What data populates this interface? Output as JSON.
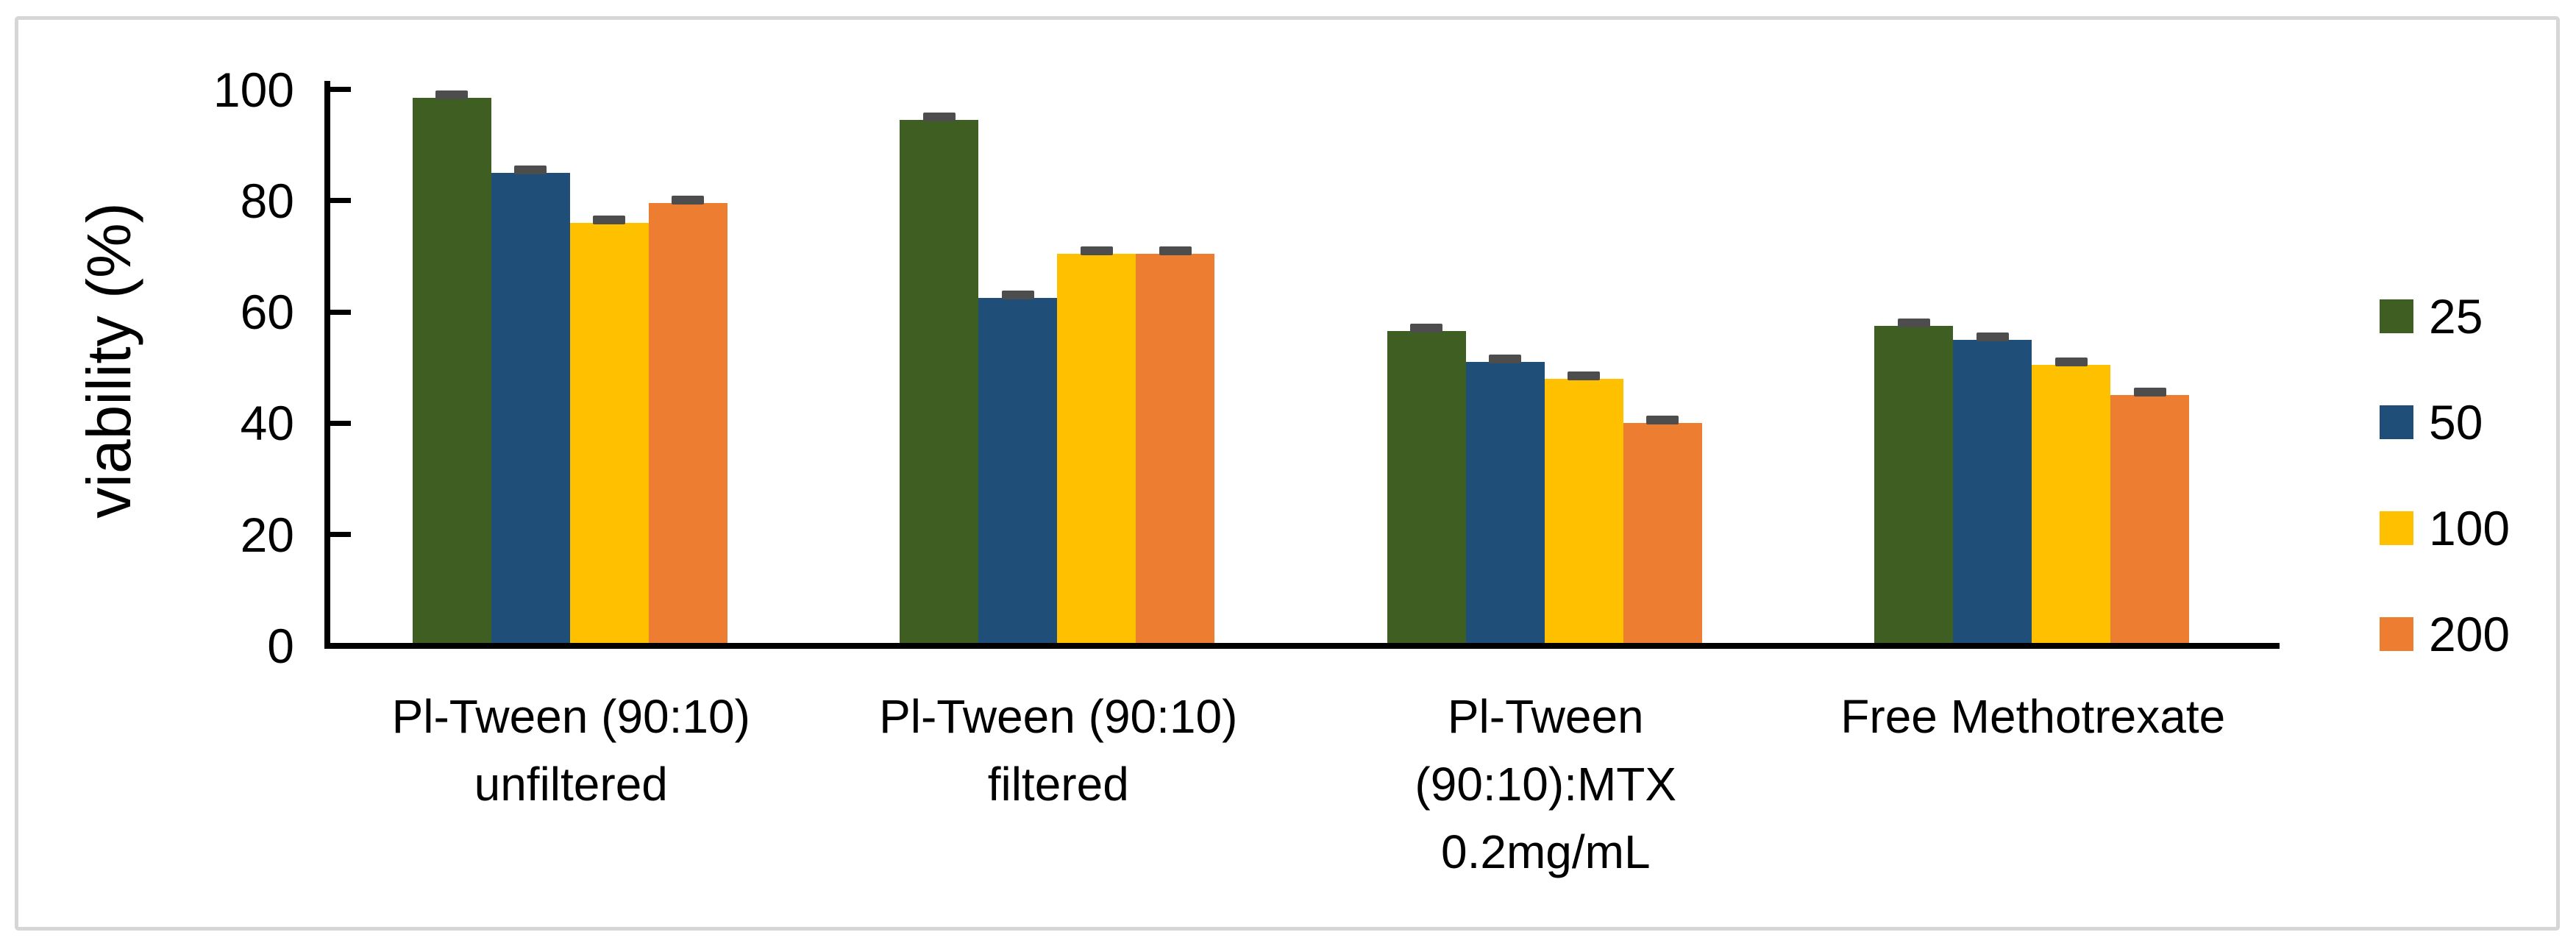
{
  "figure": {
    "border_color": "#d6d6d6",
    "background_color": "#ffffff"
  },
  "chart_data": {
    "type": "bar",
    "title": "",
    "ylabel": "viability (%)",
    "xlabel": "",
    "ylim": [
      0,
      100
    ],
    "yticks": [
      0,
      20,
      40,
      60,
      80,
      100
    ],
    "grid": false,
    "legend_position": "right",
    "axis_color": "#000000",
    "text_color": "#000000",
    "error_bar_color": "#4d4d4d",
    "categories": [
      "Pl-Tween (90:10) unfiltered",
      "Pl-Tween (90:10) filtered",
      "Pl-Tween (90:10):MTX 0.2mg/mL",
      "Free Methotrexate"
    ],
    "category_label_lines": [
      [
        "Pl-Tween (90:10)",
        "unfiltered"
      ],
      [
        "Pl-Tween (90:10)",
        "filtered"
      ],
      [
        "Pl-Tween",
        "(90:10):MTX",
        "0.2mg/mL"
      ],
      [
        "Free Methotrexate"
      ]
    ],
    "series": [
      {
        "name": "25",
        "color": "#3f5e22",
        "values": [
          98,
          94,
          56,
          57
        ],
        "errors": [
          1,
          1,
          1,
          1
        ]
      },
      {
        "name": "50",
        "color": "#1f4e79",
        "values": [
          84.5,
          62,
          50.5,
          54.5
        ],
        "errors": [
          1,
          1,
          1,
          1
        ]
      },
      {
        "name": "100",
        "color": "#ffc000",
        "values": [
          75.5,
          70,
          47.5,
          50
        ],
        "errors": [
          1,
          1,
          1,
          1
        ]
      },
      {
        "name": "200",
        "color": "#ed7d31",
        "values": [
          79,
          70,
          39.5,
          44.5
        ],
        "errors": [
          1,
          1,
          1,
          1
        ]
      }
    ]
  }
}
